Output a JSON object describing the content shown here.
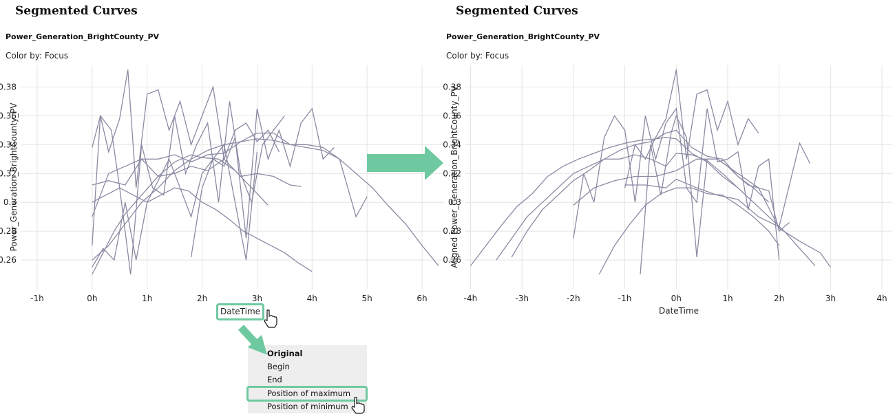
{
  "left_panel": {
    "title": "Segmented Curves",
    "subtitle": "Power_Generation_BrightCounty_PV",
    "color_by": "Color by: Focus",
    "x_axis_button": "DateTime"
  },
  "right_panel": {
    "title": "Segmented Curves",
    "subtitle": "Power_Generation_BrightCounty_PV",
    "color_by": "Color by: Focus"
  },
  "alignment_menu": {
    "items": [
      "Original",
      "Begin",
      "End",
      "Position of maximum",
      "Position of minimum"
    ],
    "selected": "Original",
    "highlighted": "Position of maximum"
  },
  "colors": {
    "line": "#8a8aa3",
    "accent": "#6ec9a0",
    "grid": "#e3e3e3"
  },
  "chart_data": [
    {
      "type": "line",
      "title": "Segmented Curves",
      "subtitle": "Power_Generation_BrightCounty_PV",
      "xlabel": "DateTime",
      "ylabel": "Power_Generation_BrightCounty_PV",
      "x_unit": "hours",
      "x_ticks": [
        "-1h",
        "0h",
        "1h",
        "2h",
        "3h",
        "4h",
        "5h",
        "6h"
      ],
      "y_ticks": [
        "0.26",
        "0.28",
        "0.3",
        "0.32",
        "0.34",
        "0.36",
        "0.38"
      ],
      "xlim": [
        -1.3,
        6.4
      ],
      "ylim": [
        0.24,
        0.395
      ],
      "grid": true,
      "series": [
        {
          "x": [
            0,
            0.2,
            0.4,
            0.6,
            0.9,
            1.2,
            1.5,
            1.8,
            2.0,
            2.3,
            2.6,
            2.9,
            3.2
          ],
          "y": [
            0.25,
            0.265,
            0.28,
            0.292,
            0.305,
            0.318,
            0.328,
            0.333,
            0.331,
            0.33,
            0.322,
            0.31,
            0.298
          ]
        },
        {
          "x": [
            0,
            0.3,
            0.6,
            0.9,
            1.2,
            1.5,
            1.8,
            2.1,
            2.4,
            2.7,
            3.0,
            3.3,
            3.6,
            3.9,
            4.2,
            4.5,
            4.8,
            5.1,
            5.4,
            5.7,
            6.0,
            6.3
          ],
          "y": [
            0.26,
            0.27,
            0.285,
            0.3,
            0.31,
            0.322,
            0.33,
            0.336,
            0.34,
            0.342,
            0.344,
            0.343,
            0.34,
            0.338,
            0.336,
            0.33,
            0.32,
            0.31,
            0.297,
            0.285,
            0.27,
            0.256
          ]
        },
        {
          "x": [
            0,
            0.25,
            0.5,
            0.75,
            1.0,
            1.25,
            1.5,
            1.75,
            2.0,
            2.25,
            2.5,
            2.75,
            3.0,
            3.25,
            3.5,
            3.75,
            4.0
          ],
          "y": [
            0.3,
            0.305,
            0.31,
            0.305,
            0.3,
            0.305,
            0.31,
            0.308,
            0.3,
            0.295,
            0.288,
            0.28,
            0.275,
            0.27,
            0.265,
            0.258,
            0.252
          ]
        },
        {
          "x": [
            0,
            0.15,
            0.3,
            0.5,
            0.65,
            0.8,
            1.0,
            1.2,
            1.4,
            1.6,
            1.8,
            2.0,
            2.2,
            2.4,
            2.6,
            2.8,
            3.0,
            3.2,
            3.4
          ],
          "y": [
            0.338,
            0.36,
            0.335,
            0.358,
            0.392,
            0.31,
            0.375,
            0.378,
            0.35,
            0.37,
            0.34,
            0.36,
            0.38,
            0.33,
            0.35,
            0.355,
            0.342,
            0.35,
            0.335
          ]
        },
        {
          "x": [
            0,
            0.15,
            0.35,
            0.5,
            0.7,
            0.9,
            1.1,
            1.3,
            1.5,
            1.7,
            1.9,
            2.1,
            2.3,
            2.5,
            2.7,
            2.9,
            3.1,
            3.3,
            3.5
          ],
          "y": [
            0.27,
            0.36,
            0.35,
            0.31,
            0.25,
            0.34,
            0.31,
            0.305,
            0.36,
            0.32,
            0.34,
            0.355,
            0.3,
            0.37,
            0.32,
            0.3,
            0.34,
            0.35,
            0.36
          ]
        },
        {
          "x": [
            0,
            0.3,
            0.6,
            0.9,
            1.2,
            1.5,
            1.8,
            2.1,
            2.4,
            2.7,
            3.0,
            3.3,
            3.6,
            3.9,
            4.2,
            4.5,
            4.8,
            5.0
          ],
          "y": [
            0.312,
            0.315,
            0.312,
            0.33,
            0.33,
            0.333,
            0.328,
            0.333,
            0.334,
            0.342,
            0.348,
            0.348,
            0.34,
            0.34,
            0.338,
            0.33,
            0.29,
            0.304
          ]
        },
        {
          "x": [
            0,
            0.3,
            0.6,
            0.9,
            1.2,
            1.5,
            1.8,
            2.1,
            2.4,
            2.7,
            3.0,
            3.3,
            3.6,
            3.8
          ],
          "y": [
            0.29,
            0.32,
            0.325,
            0.33,
            0.318,
            0.32,
            0.325,
            0.322,
            0.33,
            0.318,
            0.32,
            0.318,
            0.312,
            0.311
          ]
        },
        {
          "x": [
            0,
            0.2,
            0.4,
            0.6,
            0.8,
            1.0,
            1.2,
            1.4,
            1.6,
            1.8,
            2.0,
            2.2,
            2.4,
            2.6,
            2.8,
            3.0
          ],
          "y": [
            0.255,
            0.268,
            0.26,
            0.3,
            0.26,
            0.3,
            0.315,
            0.33,
            0.31,
            0.29,
            0.32,
            0.33,
            0.34,
            0.3,
            0.26,
            0.335
          ]
        },
        {
          "x": [
            1.8,
            2.0,
            2.2,
            2.4,
            2.6,
            2.8,
            3.0,
            3.2,
            3.4,
            3.6,
            3.8,
            4.0,
            4.2,
            4.4
          ],
          "y": [
            0.262,
            0.31,
            0.33,
            0.325,
            0.345,
            0.275,
            0.365,
            0.33,
            0.35,
            0.325,
            0.355,
            0.365,
            0.33,
            0.338
          ]
        }
      ]
    },
    {
      "type": "line",
      "title": "Segmented Curves",
      "subtitle": "Power_Generation_BrightCounty_PV",
      "xlabel": "DateTime",
      "ylabel": "Aligned Power_Generation_BrightCounty_PV",
      "x_unit": "hours",
      "x_ticks": [
        "-4h",
        "-3h",
        "-2h",
        "-1h",
        "0h",
        "1h",
        "2h",
        "3h",
        "4h"
      ],
      "y_ticks": [
        "0.26",
        "0.28",
        "0.3",
        "0.32",
        "0.34",
        "0.36",
        "0.38"
      ],
      "xlim": [
        -4.1,
        4.2
      ],
      "ylim": [
        0.24,
        0.395
      ],
      "grid": true,
      "series": [
        {
          "x": [
            -4.0,
            -3.7,
            -3.4,
            -3.1,
            -2.8,
            -2.5,
            -2.2,
            -1.9,
            -1.6,
            -1.3,
            -1.0,
            -0.7,
            -0.4,
            -0.2,
            0,
            0.3,
            0.6,
            0.9,
            1.2,
            1.5,
            1.8,
            2.1,
            2.4,
            2.7
          ],
          "y": [
            0.256,
            0.27,
            0.284,
            0.297,
            0.306,
            0.318,
            0.325,
            0.33,
            0.334,
            0.338,
            0.341,
            0.343,
            0.344,
            0.345,
            0.344,
            0.334,
            0.328,
            0.318,
            0.31,
            0.3,
            0.29,
            0.28,
            0.268,
            0.256
          ]
        },
        {
          "x": [
            -3.5,
            -3.2,
            -2.9,
            -2.6,
            -2.3,
            -2.0,
            -1.7,
            -1.4,
            -1.1,
            -0.8,
            -0.5,
            -0.2,
            0,
            0.3,
            0.6,
            0.9,
            1.2,
            1.5
          ],
          "y": [
            0.26,
            0.275,
            0.29,
            0.3,
            0.31,
            0.32,
            0.325,
            0.33,
            0.33,
            0.333,
            0.33,
            0.325,
            0.334,
            0.333,
            0.329,
            0.32,
            0.31,
            0.3
          ]
        },
        {
          "x": [
            -3.2,
            -2.9,
            -2.6,
            -2.3,
            -2.0,
            -1.7,
            -1.4,
            -1.1,
            -0.8,
            -0.5,
            -0.2,
            0,
            0.3,
            0.6,
            0.9,
            1.2,
            1.5,
            1.8
          ],
          "y": [
            0.262,
            0.28,
            0.295,
            0.305,
            0.315,
            0.322,
            0.33,
            0.336,
            0.34,
            0.342,
            0.348,
            0.35,
            0.338,
            0.332,
            0.33,
            0.318,
            0.31,
            0.3
          ]
        },
        {
          "x": [
            -1.5,
            -1.2,
            -0.9,
            -0.6,
            -0.3,
            0,
            0.3,
            0.6,
            0.9,
            1.2,
            1.5,
            1.8,
            2.0
          ],
          "y": [
            0.25,
            0.27,
            0.285,
            0.298,
            0.306,
            0.31,
            0.31,
            0.306,
            0.305,
            0.298,
            0.29,
            0.28,
            0.27
          ]
        },
        {
          "x": [
            -1.0,
            -0.8,
            -0.6,
            -0.4,
            -0.2,
            0,
            0.2,
            0.4,
            0.6,
            0.8,
            1.0,
            1.2,
            1.4,
            1.6
          ],
          "y": [
            0.31,
            0.34,
            0.33,
            0.345,
            0.358,
            0.392,
            0.33,
            0.375,
            0.378,
            0.35,
            0.37,
            0.34,
            0.358,
            0.348
          ]
        },
        {
          "x": [
            -2.0,
            -1.8,
            -1.6,
            -1.4,
            -1.2,
            -1.0,
            -0.8,
            -0.6,
            -0.4,
            -0.2,
            0,
            0.2,
            0.4,
            0.6,
            0.8,
            1.0,
            1.2,
            1.4,
            1.6,
            1.8,
            2.0
          ],
          "y": [
            0.275,
            0.32,
            0.3,
            0.345,
            0.36,
            0.35,
            0.3,
            0.36,
            0.33,
            0.355,
            0.365,
            0.31,
            0.3,
            0.365,
            0.328,
            0.33,
            0.335,
            0.295,
            0.325,
            0.33,
            0.26
          ]
        },
        {
          "x": [
            -0.7,
            -0.5,
            -0.3,
            -0.1,
            0,
            0.2,
            0.4,
            0.6,
            0.8,
            1.0,
            1.2,
            1.4,
            1.6,
            1.8,
            2.0,
            2.2
          ],
          "y": [
            0.25,
            0.34,
            0.305,
            0.348,
            0.36,
            0.345,
            0.262,
            0.33,
            0.33,
            0.325,
            0.318,
            0.312,
            0.31,
            0.308,
            0.28,
            0.286
          ]
        },
        {
          "x": [
            -2.0,
            -1.6,
            -1.2,
            -0.8,
            -0.4,
            0,
            0.4,
            0.8,
            1.2,
            1.6,
            2.0,
            2.4,
            2.8,
            3.0
          ],
          "y": [
            0.298,
            0.31,
            0.315,
            0.318,
            0.318,
            0.322,
            0.33,
            0.33,
            0.32,
            0.31,
            0.282,
            0.273,
            0.265,
            0.255
          ]
        },
        {
          "x": [
            -1.0,
            -0.6,
            -0.2,
            0,
            0.4,
            0.8,
            1.2,
            1.6,
            2.0,
            2.4,
            2.6
          ],
          "y": [
            0.312,
            0.312,
            0.31,
            0.316,
            0.31,
            0.305,
            0.302,
            0.29,
            0.283,
            0.341,
            0.327
          ]
        }
      ]
    }
  ]
}
